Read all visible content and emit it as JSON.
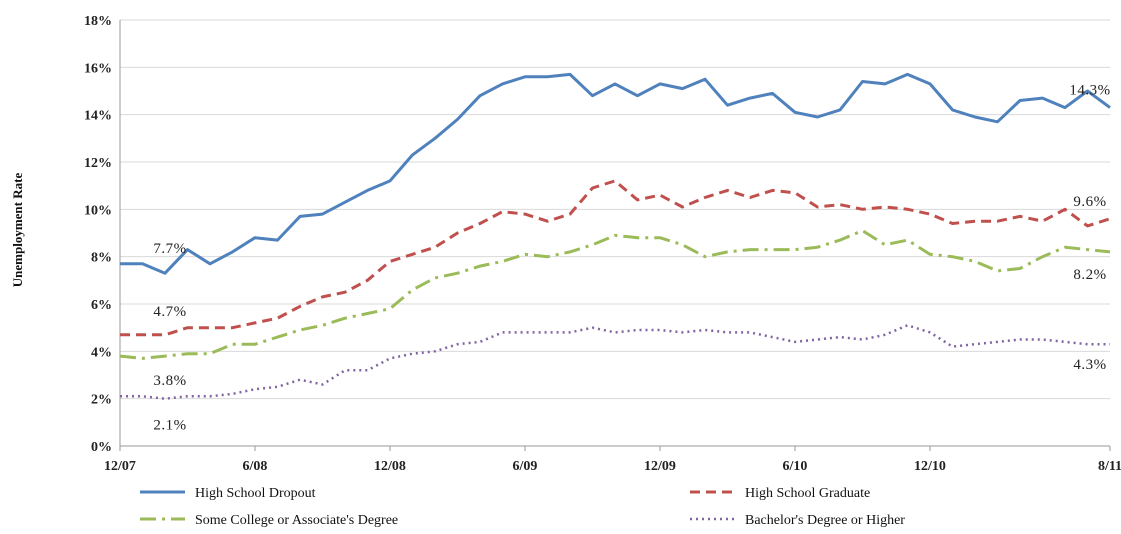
{
  "chart_data": {
    "type": "line",
    "title": "",
    "xlabel": "",
    "ylabel": "Unemployment Rate",
    "ylim": [
      0,
      18
    ],
    "y_ticks": [
      "0%",
      "2%",
      "4%",
      "6%",
      "8%",
      "10%",
      "12%",
      "14%",
      "16%",
      "18%"
    ],
    "x_ticks": [
      "12/07",
      "6/08",
      "12/08",
      "6/09",
      "12/09",
      "6/10",
      "12/10",
      "8/11"
    ],
    "grid": "horizontal",
    "legend": "bottom",
    "x": [
      "12/07",
      "1/08",
      "2/08",
      "3/08",
      "4/08",
      "5/08",
      "6/08",
      "7/08",
      "8/08",
      "9/08",
      "10/08",
      "11/08",
      "12/08",
      "1/09",
      "2/09",
      "3/09",
      "4/09",
      "5/09",
      "6/09",
      "7/09",
      "8/09",
      "9/09",
      "10/09",
      "11/09",
      "12/09",
      "1/10",
      "2/10",
      "3/10",
      "4/10",
      "5/10",
      "6/10",
      "7/10",
      "8/10",
      "9/10",
      "10/10",
      "11/10",
      "12/10",
      "1/11",
      "2/11",
      "3/11",
      "4/11",
      "5/11",
      "6/11",
      "7/11",
      "8/11"
    ],
    "series": [
      {
        "name": "High School Dropout",
        "color": "#4f81bd",
        "dash": "solid",
        "values": [
          7.7,
          7.7,
          7.3,
          8.3,
          7.7,
          8.2,
          8.8,
          8.7,
          9.7,
          9.8,
          10.3,
          10.8,
          11.2,
          12.3,
          13.0,
          13.8,
          14.8,
          15.3,
          15.6,
          15.6,
          15.7,
          14.8,
          15.3,
          14.8,
          15.3,
          15.1,
          15.5,
          14.4,
          14.7,
          14.9,
          14.1,
          13.9,
          14.2,
          15.4,
          15.3,
          15.7,
          15.3,
          14.2,
          13.9,
          13.7,
          14.6,
          14.7,
          14.3,
          15.0,
          14.3
        ],
        "start_label": "7.7%",
        "end_label": "14.3%"
      },
      {
        "name": "High School Graduate",
        "color": "#c0504d",
        "dash": "dashed",
        "values": [
          4.7,
          4.7,
          4.7,
          5.0,
          5.0,
          5.0,
          5.2,
          5.4,
          5.9,
          6.3,
          6.5,
          7.0,
          7.8,
          8.1,
          8.4,
          9.0,
          9.4,
          9.9,
          9.8,
          9.5,
          9.8,
          10.9,
          11.2,
          10.4,
          10.6,
          10.1,
          10.5,
          10.8,
          10.5,
          10.8,
          10.7,
          10.1,
          10.2,
          10.0,
          10.1,
          10.0,
          9.8,
          9.4,
          9.5,
          9.5,
          9.7,
          9.5,
          10.0,
          9.3,
          9.6
        ],
        "start_label": "4.7%",
        "end_label": "9.6%"
      },
      {
        "name": "Some College or Associate's Degree",
        "color": "#9bbb59",
        "dash": "dashdot",
        "values": [
          3.8,
          3.7,
          3.8,
          3.9,
          3.9,
          4.3,
          4.3,
          4.6,
          4.9,
          5.1,
          5.4,
          5.6,
          5.8,
          6.6,
          7.1,
          7.3,
          7.6,
          7.8,
          8.1,
          8.0,
          8.2,
          8.5,
          8.9,
          8.8,
          8.8,
          8.5,
          8.0,
          8.2,
          8.3,
          8.3,
          8.3,
          8.4,
          8.7,
          9.1,
          8.5,
          8.7,
          8.1,
          8.0,
          7.8,
          7.4,
          7.5,
          8.0,
          8.4,
          8.3,
          8.2
        ],
        "start_label": "3.8%",
        "end_label": "8.2%"
      },
      {
        "name": "Bachelor's Degree or Higher",
        "color": "#8064a2",
        "dash": "dotted",
        "values": [
          2.1,
          2.1,
          2.0,
          2.1,
          2.1,
          2.2,
          2.4,
          2.5,
          2.8,
          2.6,
          3.2,
          3.2,
          3.7,
          3.9,
          4.0,
          4.3,
          4.4,
          4.8,
          4.8,
          4.8,
          4.8,
          5.0,
          4.8,
          4.9,
          4.9,
          4.8,
          4.9,
          4.8,
          4.8,
          4.6,
          4.4,
          4.5,
          4.6,
          4.5,
          4.7,
          5.1,
          4.8,
          4.2,
          4.3,
          4.4,
          4.5,
          4.5,
          4.4,
          4.3,
          4.3
        ],
        "start_label": "2.1%",
        "end_label": "4.3%"
      }
    ]
  }
}
